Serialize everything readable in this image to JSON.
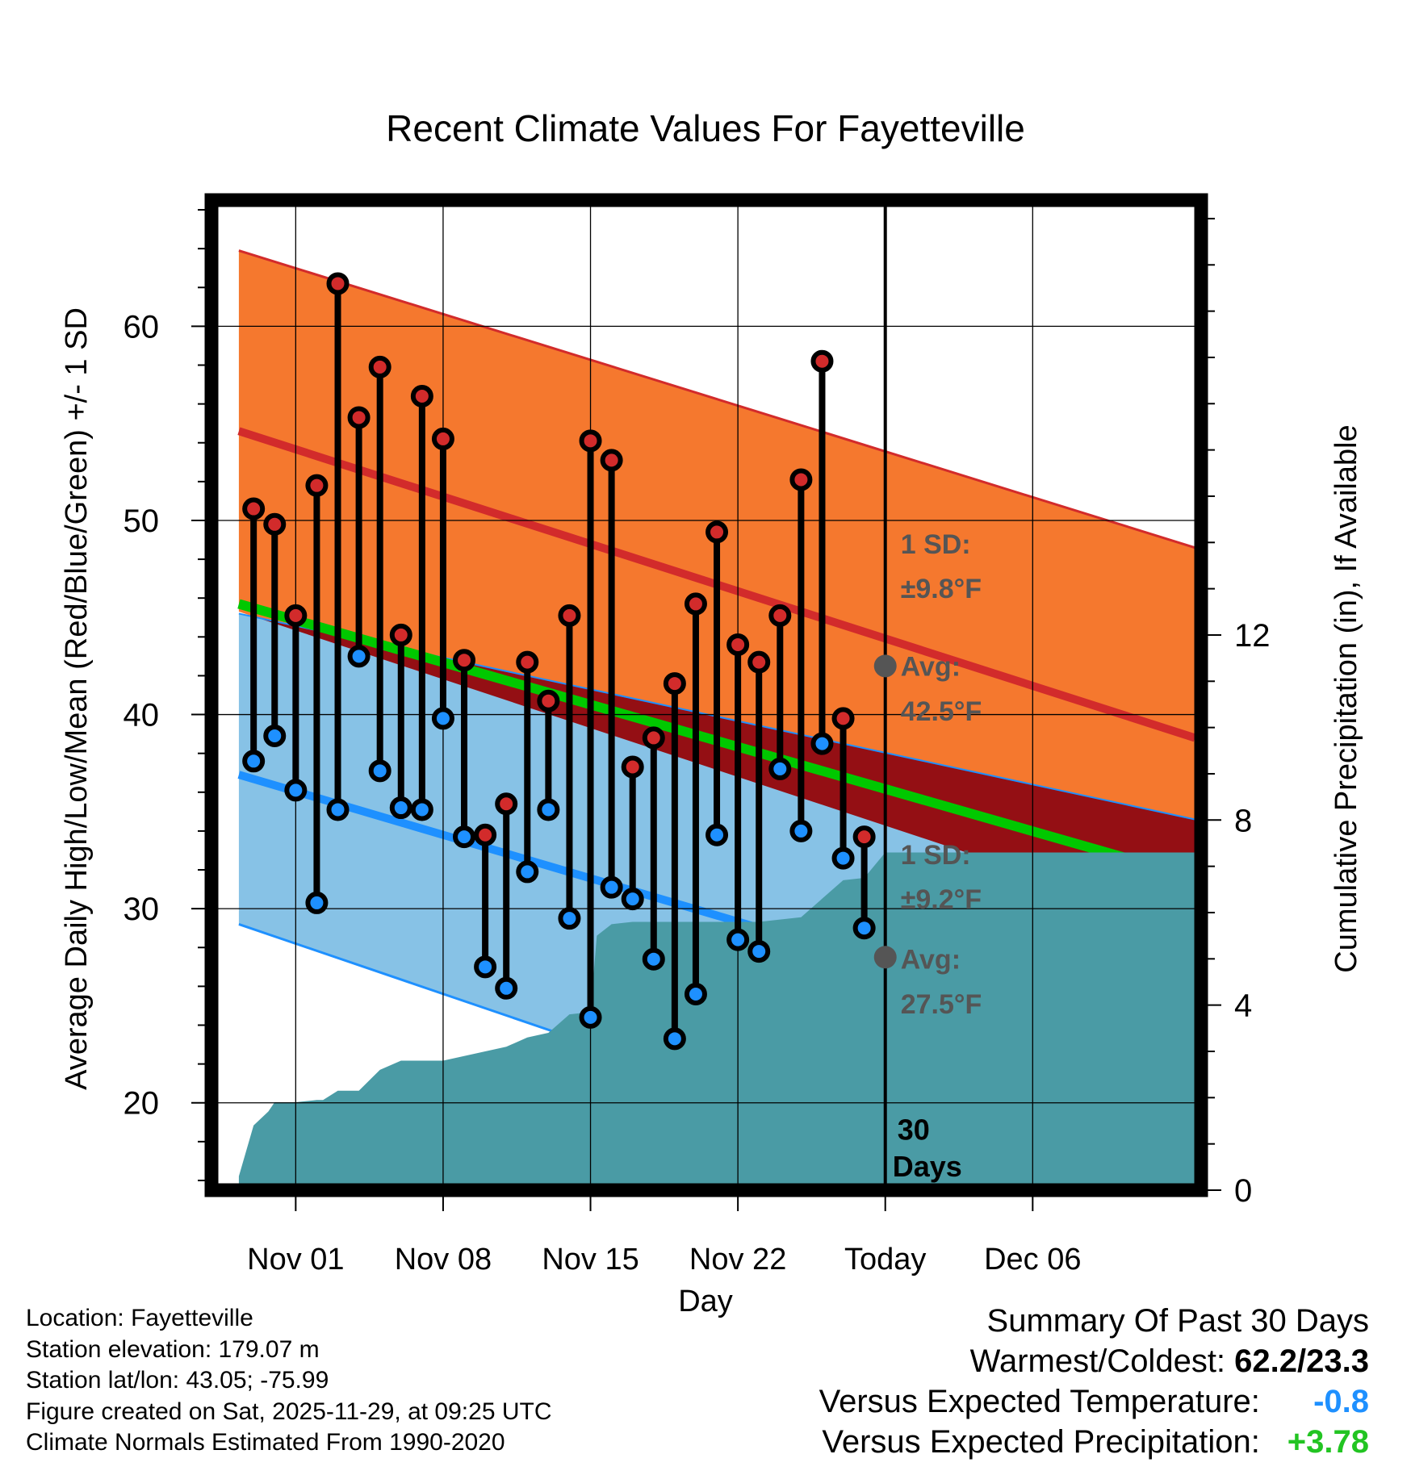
{
  "chart_data": {
    "type": "line",
    "title": "Recent Climate Values For Fayetteville",
    "xlabel": "Day",
    "ylabel_left": "Average Daily High/Low/Mean (Red/Blue/Green) +/- 1 SD",
    "ylabel_right": "Cumulative Precipitation (in), If Available",
    "ylim_left": [
      15.5,
      66.5
    ],
    "ylim_right": [
      0,
      21.4
    ],
    "xlim": [
      -4,
      43
    ],
    "x_tick_positions": [
      0,
      7,
      14,
      21,
      28,
      35
    ],
    "x_tick_labels": [
      "Nov 01",
      "Nov 08",
      "Nov 15",
      "Nov 22",
      "Today",
      "Dec 06"
    ],
    "y_ticks_left": [
      20,
      30,
      40,
      50,
      60
    ],
    "y_ticks_right": [
      0,
      4,
      8,
      12
    ],
    "today_x": 28,
    "normals": {
      "x": [
        -2.7,
        42.7
      ],
      "high_avg": [
        54.6,
        38.8
      ],
      "high_upper": [
        63.9,
        48.6
      ],
      "low_avg": [
        36.9,
        22.4
      ],
      "low_upper": [
        45.2,
        34.6
      ],
      "low_lower": [
        29.2,
        12.4
      ],
      "mean_avg": [
        45.7,
        31.6
      ]
    },
    "series": [
      {
        "name": "Daily High",
        "color": "#d22b2b",
        "x": [
          -2,
          -1,
          0,
          1,
          2,
          3,
          4,
          5,
          6,
          7,
          8,
          9,
          10,
          11,
          12,
          13,
          14,
          15,
          16,
          17,
          18,
          19,
          20,
          21,
          22,
          23,
          24,
          25,
          26,
          27
        ],
        "values": [
          50.6,
          49.8,
          45.1,
          51.8,
          62.2,
          55.3,
          57.9,
          44.1,
          56.4,
          54.2,
          42.8,
          33.8,
          35.4,
          42.7,
          40.7,
          45.1,
          54.1,
          53.1,
          37.3,
          38.8,
          41.6,
          45.7,
          49.4,
          43.6,
          42.7,
          45.1,
          52.1,
          58.2,
          39.8,
          33.7
        ]
      },
      {
        "name": "Daily Low",
        "color": "#1e90ff",
        "x": [
          -2,
          -1,
          0,
          1,
          2,
          3,
          4,
          5,
          6,
          7,
          8,
          9,
          10,
          11,
          12,
          13,
          14,
          15,
          16,
          17,
          18,
          19,
          20,
          21,
          22,
          23,
          24,
          25,
          26,
          27
        ],
        "values": [
          37.6,
          38.9,
          36.1,
          30.3,
          35.1,
          43.0,
          37.1,
          35.2,
          35.1,
          39.8,
          33.7,
          27.0,
          25.9,
          31.9,
          35.1,
          29.5,
          24.4,
          31.1,
          30.5,
          27.4,
          23.3,
          25.6,
          33.8,
          28.4,
          27.8,
          37.2,
          34.0,
          38.5,
          32.6,
          29.0
        ]
      },
      {
        "name": "Cumulative Precipitation",
        "color": "#4a9ba5",
        "x": [
          -2.7,
          -2,
          -1.3,
          -1,
          0,
          1,
          1.3,
          2,
          3,
          4,
          5,
          6,
          7,
          8,
          9,
          10,
          11,
          12,
          13,
          14,
          14.3,
          15,
          16,
          17,
          18,
          19,
          20,
          21,
          22,
          23,
          24,
          25,
          26,
          27,
          28,
          42.7
        ],
        "values": [
          0.3,
          1.4,
          1.7,
          1.9,
          1.9,
          1.95,
          1.95,
          2.15,
          2.15,
          2.6,
          2.8,
          2.8,
          2.8,
          2.9,
          3.0,
          3.1,
          3.3,
          3.4,
          3.8,
          3.85,
          5.5,
          5.75,
          5.8,
          5.8,
          5.8,
          5.8,
          5.8,
          5.8,
          5.8,
          5.85,
          5.9,
          6.3,
          6.7,
          6.75,
          7.3,
          7.3
        ]
      }
    ],
    "annotations": {
      "high_sd_label": "1 SD:",
      "high_sd_value": "±9.8°F",
      "high_avg_label": "Avg:",
      "high_avg_value": "42.5°F",
      "high_avg_marker": 42.5,
      "low_sd_label": "1 SD:",
      "low_sd_value": "±9.2°F",
      "low_avg_label": "Avg:",
      "low_avg_value": "27.5°F",
      "low_avg_marker": 27.5,
      "days_number": "30",
      "days_label": "Days"
    },
    "colors": {
      "high_band": "#f5782e",
      "high_line": "#d22b2b",
      "low_band": "#87c2e6",
      "low_line": "#1e90ff",
      "overlap": "#940f14",
      "mean_line": "#00c800",
      "precip": "#4a9ba5",
      "annotation": "#555555"
    }
  },
  "footer": {
    "location": "Location: Fayetteville",
    "elevation": "Station elevation: 179.07 m",
    "latlon": "Station lat/lon: 43.05; -75.99",
    "created": "Figure created on Sat, 2025-11-29, at 09:25 UTC",
    "normals": "Climate Normals Estimated From 1990-2020"
  },
  "summary": {
    "title": "Summary Of Past 30 Days",
    "warm_cold_label": "Warmest/Coldest:",
    "warm_cold_value": "62.2/23.3",
    "temp_label": "Versus Expected Temperature:",
    "temp_value": "-0.8",
    "precip_label": "Versus Expected Precipitation:",
    "precip_value": "+3.78"
  }
}
